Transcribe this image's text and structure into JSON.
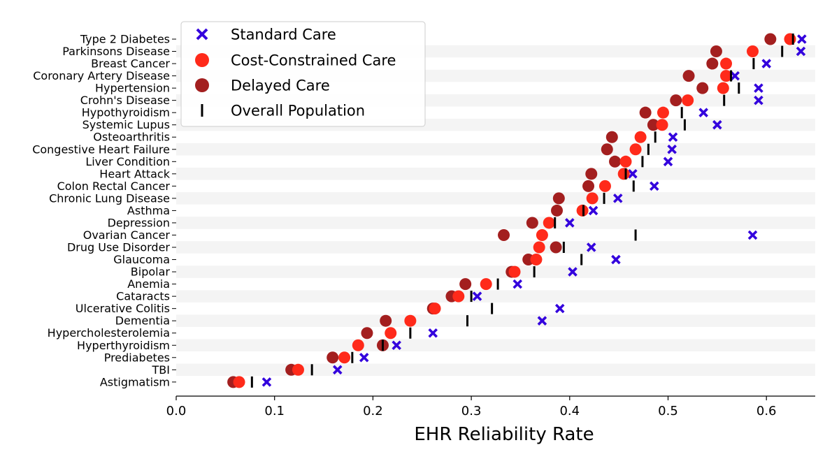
{
  "chart_data": {
    "type": "scatter",
    "orientation": "horizontal-dot-plot",
    "xlabel": "EHR Reliability Rate",
    "ylabel": "",
    "title": "",
    "xlim": [
      0.0,
      0.65
    ],
    "xticks": [
      0.0,
      0.1,
      0.2,
      0.3,
      0.4,
      0.5,
      0.6
    ],
    "xtick_labels": [
      "0.0",
      "0.1",
      "0.2",
      "0.3",
      "0.4",
      "0.5",
      "0.6"
    ],
    "grid": false,
    "row_banding": true,
    "legend_position": "top-left",
    "categories": [
      "Type 2 Diabetes",
      "Parkinsons Disease",
      "Breast Cancer",
      "Coronary Artery Disease",
      "Hypertension",
      "Crohn's Disease",
      "Hypothyroidism",
      "Systemic Lupus",
      "Osteoarthritis",
      "Congestive Heart Failure",
      "Liver Condition",
      "Heart Attack",
      "Colon Rectal Cancer",
      "Chronic Lung Disease",
      "Asthma",
      "Depression",
      "Ovarian Cancer",
      "Drug Use Disorder",
      "Glaucoma",
      "Bipolar",
      "Anemia",
      "Cataracts",
      "Ulcerative Colitis",
      "Dementia",
      "Hypercholesterolemia",
      "Hyperthyroidism",
      "Prediabetes",
      "TBI",
      "Astigmatism"
    ],
    "series": [
      {
        "name": "Standard Care",
        "marker": "x",
        "color": "#3300dd",
        "values": [
          0.636,
          0.635,
          0.6,
          0.568,
          0.592,
          0.592,
          0.536,
          0.55,
          0.505,
          0.504,
          0.5,
          0.464,
          0.486,
          0.449,
          0.424,
          0.4,
          0.586,
          0.422,
          0.447,
          0.403,
          0.347,
          0.306,
          0.39,
          0.372,
          0.261,
          0.224,
          0.191,
          0.164,
          0.092
        ]
      },
      {
        "name": "Cost-Constrained Care",
        "marker": "circle",
        "color": "#ff2a1a",
        "values": [
          0.624,
          0.586,
          0.559,
          0.559,
          0.556,
          0.52,
          0.495,
          0.494,
          0.472,
          0.467,
          0.457,
          0.455,
          0.436,
          0.423,
          0.413,
          0.379,
          0.372,
          0.369,
          0.366,
          0.344,
          0.315,
          0.287,
          0.263,
          0.238,
          0.218,
          0.185,
          0.171,
          0.124,
          0.064
        ]
      },
      {
        "name": "Delayed Care",
        "marker": "circle",
        "color": "#a31f1f",
        "values": [
          0.604,
          0.549,
          0.545,
          0.521,
          0.535,
          0.508,
          0.477,
          0.485,
          0.443,
          0.438,
          0.446,
          0.422,
          0.419,
          0.389,
          0.387,
          0.362,
          0.333,
          0.386,
          0.358,
          0.341,
          0.294,
          0.28,
          0.261,
          0.213,
          0.194,
          0.21,
          0.159,
          0.117,
          0.058
        ]
      },
      {
        "name": "Overall Population",
        "marker": "vline",
        "color": "#000000",
        "values": [
          0.627,
          0.616,
          0.587,
          0.564,
          0.572,
          0.557,
          0.514,
          0.517,
          0.487,
          0.48,
          0.474,
          0.457,
          0.465,
          0.435,
          0.414,
          0.385,
          0.467,
          0.394,
          0.412,
          0.364,
          0.327,
          0.3,
          0.321,
          0.296,
          0.238,
          0.21,
          0.179,
          0.138,
          0.077
        ]
      }
    ]
  }
}
